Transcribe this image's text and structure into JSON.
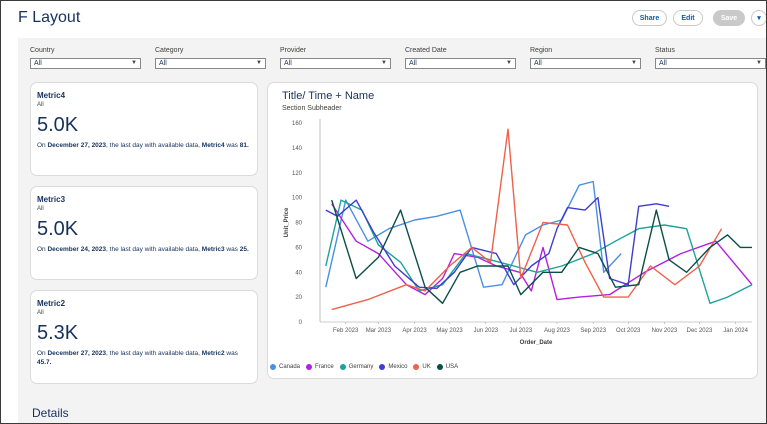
{
  "page": {
    "title": "F Layout"
  },
  "toolbar": {
    "share_label": "Share",
    "edit_label": "Edit",
    "save_label": "Save",
    "more_glyph": "▾"
  },
  "filters": [
    {
      "label": "Country",
      "value": "All"
    },
    {
      "label": "Category",
      "value": "All"
    },
    {
      "label": "Provider",
      "value": "All"
    },
    {
      "label": "Created Date",
      "value": "All"
    },
    {
      "label": "Region",
      "value": "All"
    },
    {
      "label": "Status",
      "value": "All"
    }
  ],
  "metrics": [
    {
      "title": "Metric4",
      "subtitle": "All",
      "value": "5.0K",
      "note_prefix": "On ",
      "note_date": "December 27, 2023",
      "note_mid": ", the last day with available data, ",
      "note_metric": "Metric4",
      "note_suffix": " was ",
      "note_value": "81."
    },
    {
      "title": "Metric3",
      "subtitle": "All",
      "value": "5.0K",
      "note_prefix": "On ",
      "note_date": "December 24, 2023",
      "note_mid": ", the last day with available data, ",
      "note_metric": "Metric3",
      "note_suffix": " was ",
      "note_value": "25."
    },
    {
      "title": "Metric2",
      "subtitle": "All",
      "value": "5.3K",
      "note_prefix": "On ",
      "note_date": "December 27, 2023",
      "note_mid": ", the last day with available data, ",
      "note_metric": "Metric2",
      "note_suffix": " was ",
      "note_value": "45.7."
    }
  ],
  "chart": {
    "title": "Title/ Time + Name",
    "subtitle": "Section Subheader"
  },
  "details": {
    "title": "Details"
  },
  "chart_data": {
    "type": "line",
    "title": "Title/ Time + Name",
    "subtitle": "Section Subheader",
    "xlabel": "Order_Date",
    "ylabel": "Unit_Price",
    "ylim": [
      0,
      160
    ],
    "yticks": [
      0,
      20,
      40,
      60,
      80,
      100,
      120,
      140,
      160
    ],
    "xlim": [
      "2023-01-10",
      "2024-01-15"
    ],
    "xticks": [
      {
        "date": "2023-02-01",
        "label": "Feb 2023"
      },
      {
        "date": "2023-03-01",
        "label": "Mar 2023"
      },
      {
        "date": "2023-04-01",
        "label": "Apr 2023"
      },
      {
        "date": "2023-05-01",
        "label": "May 2023"
      },
      {
        "date": "2023-06-01",
        "label": "Jun 2023"
      },
      {
        "date": "2023-07-01",
        "label": "Jul 2023"
      },
      {
        "date": "2023-08-01",
        "label": "Aug 2023"
      },
      {
        "date": "2023-09-01",
        "label": "Sep 2023"
      },
      {
        "date": "2023-10-01",
        "label": "Oct 2023"
      },
      {
        "date": "2023-11-01",
        "label": "Nov 2023"
      },
      {
        "date": "2023-12-01",
        "label": "Dec 2023"
      },
      {
        "date": "2024-01-01",
        "label": "Jan 2024"
      }
    ],
    "grid": false,
    "legend_position": "bottom-left",
    "series": [
      {
        "name": "Canada",
        "color": "#4a90e2",
        "points": [
          [
            "2023-01-15",
            28
          ],
          [
            "2023-02-01",
            98
          ],
          [
            "2023-02-20",
            65
          ],
          [
            "2023-03-10",
            75
          ],
          [
            "2023-04-01",
            82
          ],
          [
            "2023-04-20",
            85
          ],
          [
            "2023-05-10",
            90
          ],
          [
            "2023-05-30",
            28
          ],
          [
            "2023-06-15",
            30
          ],
          [
            "2023-07-05",
            70
          ],
          [
            "2023-07-20",
            78
          ],
          [
            "2023-08-05",
            82
          ],
          [
            "2023-08-20",
            110
          ],
          [
            "2023-09-01",
            113
          ],
          [
            "2023-09-10",
            40
          ],
          [
            "2023-09-25",
            55
          ]
        ]
      },
      {
        "name": "France",
        "color": "#b31fe0",
        "points": [
          [
            "2023-01-20",
            95
          ],
          [
            "2023-02-10",
            65
          ],
          [
            "2023-03-01",
            55
          ],
          [
            "2023-03-25",
            30
          ],
          [
            "2023-04-10",
            22
          ],
          [
            "2023-04-25",
            35
          ],
          [
            "2023-05-05",
            55
          ],
          [
            "2023-05-25",
            52
          ],
          [
            "2023-06-10",
            45
          ],
          [
            "2023-06-30",
            40
          ],
          [
            "2023-07-10",
            25
          ],
          [
            "2023-07-20",
            60
          ],
          [
            "2023-08-01",
            18
          ],
          [
            "2023-08-20",
            20
          ],
          [
            "2023-09-15",
            22
          ],
          [
            "2023-10-15",
            40
          ],
          [
            "2023-11-15",
            55
          ],
          [
            "2023-12-15",
            65
          ],
          [
            "2024-01-15",
            30
          ]
        ]
      },
      {
        "name": "Germany",
        "color": "#1aa39a",
        "points": [
          [
            "2023-01-15",
            45
          ],
          [
            "2023-01-28",
            98
          ],
          [
            "2023-02-15",
            90
          ],
          [
            "2023-03-01",
            62
          ],
          [
            "2023-03-20",
            48
          ],
          [
            "2023-04-05",
            25
          ],
          [
            "2023-04-25",
            30
          ],
          [
            "2023-05-15",
            55
          ],
          [
            "2023-06-05",
            50
          ],
          [
            "2023-06-25",
            45
          ],
          [
            "2023-07-15",
            40
          ],
          [
            "2023-08-05",
            45
          ],
          [
            "2023-09-01",
            55
          ],
          [
            "2023-09-20",
            65
          ],
          [
            "2023-10-10",
            75
          ],
          [
            "2023-11-01",
            78
          ],
          [
            "2023-11-20",
            75
          ],
          [
            "2023-12-10",
            15
          ],
          [
            "2023-12-25",
            20
          ],
          [
            "2024-01-15",
            30
          ]
        ]
      },
      {
        "name": "Mexico",
        "color": "#3f3ccf",
        "points": [
          [
            "2023-01-15",
            90
          ],
          [
            "2023-01-25",
            85
          ],
          [
            "2023-02-10",
            98
          ],
          [
            "2023-02-25",
            72
          ],
          [
            "2023-03-15",
            45
          ],
          [
            "2023-04-05",
            28
          ],
          [
            "2023-04-20",
            27
          ],
          [
            "2023-05-05",
            40
          ],
          [
            "2023-05-20",
            60
          ],
          [
            "2023-06-10",
            55
          ],
          [
            "2023-06-25",
            30
          ],
          [
            "2023-07-10",
            45
          ],
          [
            "2023-07-25",
            55
          ],
          [
            "2023-08-01",
            75
          ],
          [
            "2023-08-10",
            92
          ],
          [
            "2023-08-25",
            90
          ],
          [
            "2023-09-05",
            100
          ],
          [
            "2023-09-15",
            35
          ],
          [
            "2023-10-01",
            30
          ],
          [
            "2023-10-10",
            93
          ],
          [
            "2023-10-25",
            95
          ],
          [
            "2023-11-05",
            93
          ]
        ]
      },
      {
        "name": "UK",
        "color": "#f0604a",
        "points": [
          [
            "2023-01-20",
            10
          ],
          [
            "2023-02-20",
            18
          ],
          [
            "2023-03-25",
            30
          ],
          [
            "2023-04-10",
            25
          ],
          [
            "2023-05-01",
            45
          ],
          [
            "2023-05-20",
            60
          ],
          [
            "2023-06-05",
            48
          ],
          [
            "2023-06-20",
            155
          ],
          [
            "2023-07-01",
            35
          ],
          [
            "2023-07-20",
            80
          ],
          [
            "2023-08-10",
            78
          ],
          [
            "2023-08-25",
            48
          ],
          [
            "2023-09-10",
            20
          ],
          [
            "2023-10-01",
            20
          ],
          [
            "2023-10-20",
            45
          ],
          [
            "2023-11-10",
            30
          ],
          [
            "2023-12-01",
            45
          ],
          [
            "2023-12-20",
            75
          ]
        ]
      },
      {
        "name": "USA",
        "color": "#0b4d47",
        "points": [
          [
            "2023-01-20",
            98
          ],
          [
            "2023-02-10",
            35
          ],
          [
            "2023-03-01",
            52
          ],
          [
            "2023-03-20",
            90
          ],
          [
            "2023-04-10",
            28
          ],
          [
            "2023-04-25",
            15
          ],
          [
            "2023-05-10",
            40
          ],
          [
            "2023-05-25",
            45
          ],
          [
            "2023-06-20",
            45
          ],
          [
            "2023-07-01",
            22
          ],
          [
            "2023-07-20",
            40
          ],
          [
            "2023-08-05",
            40
          ],
          [
            "2023-08-20",
            60
          ],
          [
            "2023-09-05",
            55
          ],
          [
            "2023-09-20",
            28
          ],
          [
            "2023-10-10",
            30
          ],
          [
            "2023-10-25",
            90
          ],
          [
            "2023-11-05",
            50
          ],
          [
            "2023-11-20",
            40
          ],
          [
            "2023-12-10",
            60
          ],
          [
            "2023-12-25",
            70
          ],
          [
            "2024-01-05",
            60
          ],
          [
            "2024-01-15",
            60
          ]
        ]
      }
    ]
  }
}
